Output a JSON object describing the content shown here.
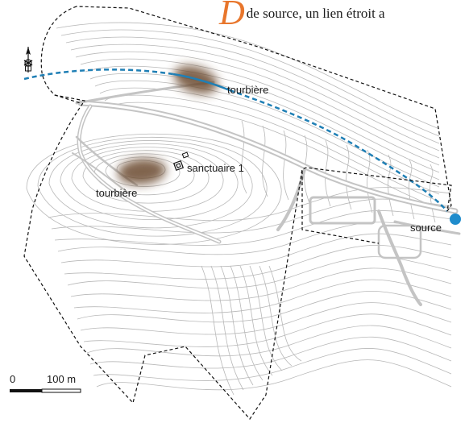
{
  "caption": {
    "dropcap": "D",
    "text": "de source, un lien étroit a"
  },
  "labels": {
    "tourbiere_north": "tourbière",
    "tourbiere_west": "tourbière",
    "sanctuaire": "sanctuaire 1",
    "source": "source"
  },
  "scale_bar": {
    "start_label": "0",
    "end_label": "100 m",
    "length_m": 100
  },
  "icons": {
    "north_arrow": "north-arrow-icon",
    "sanctuary": "sanctuary-building-icon",
    "source": "spring-source-icon"
  },
  "colors": {
    "stream": "#1f7fb5",
    "source_dot": "#1f8ccc",
    "peat_bog": "#6b4a2f",
    "contours": "#b4b4b4",
    "roads": "#bdbdbd",
    "boundary": "#111111",
    "dropcap": "#e8762c"
  }
}
